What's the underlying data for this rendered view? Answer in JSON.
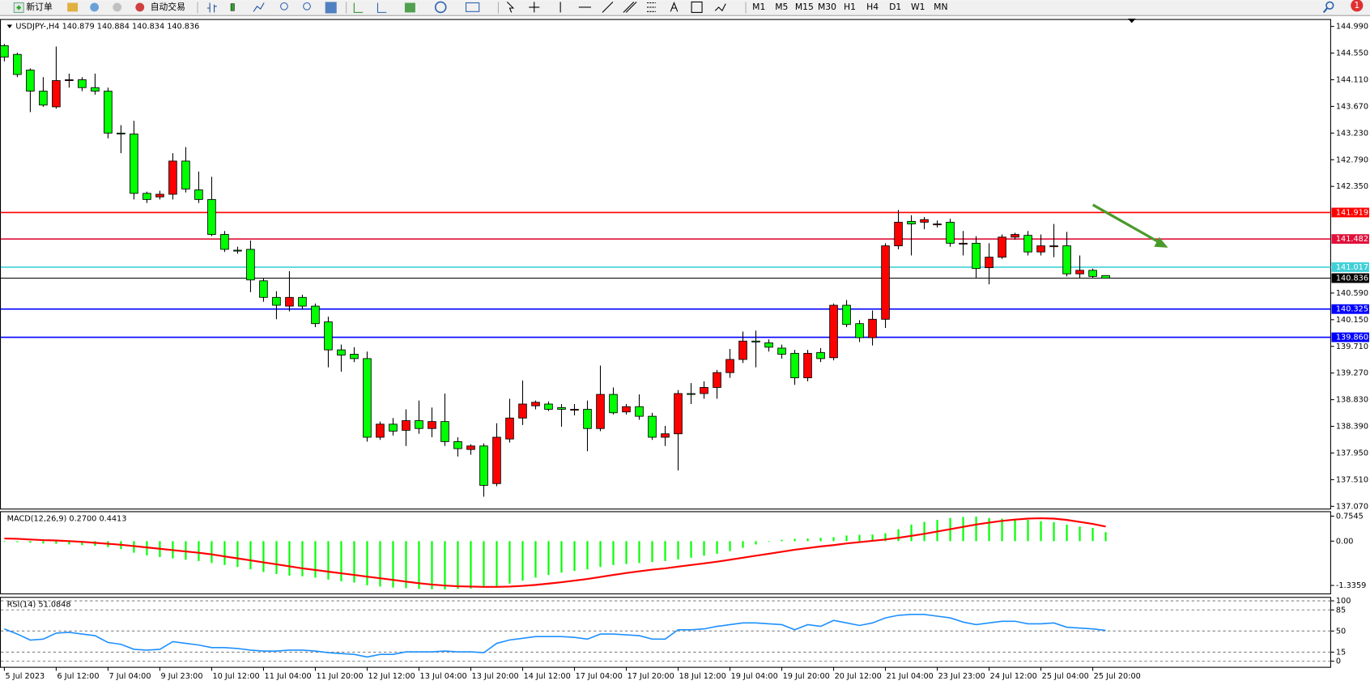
{
  "toolbar": {
    "new_order": "新订单",
    "auto_trading": "自动交易",
    "timeframes": [
      "M1",
      "M5",
      "M15",
      "M30",
      "H1",
      "H4",
      "D1",
      "W1",
      "MN"
    ],
    "notification": "1"
  },
  "chart_data": [
    {
      "type": "candlestick",
      "title": "USDJPY-,H4  140.879 140.884 140.834 140.836",
      "up_color": "#ff0000",
      "down_color": "#00ff00",
      "x": [
        "5 Jul 2023",
        null,
        null,
        null,
        "6 Jul 12:00",
        null,
        null,
        null,
        "7 Jul 04:00",
        null,
        null,
        null,
        "9 Jul 23:00",
        null,
        null,
        null,
        "10 Jul 12:00",
        null,
        null,
        null,
        "11 Jul 04:00",
        null,
        null,
        null,
        "11 Jul 20:00",
        null,
        null,
        null,
        "12 Jul 12:00",
        null,
        null,
        null,
        "13 Jul 04:00",
        null,
        null,
        null,
        "13 Jul 20:00",
        null,
        null,
        null,
        "14 Jul 12:00",
        null,
        null,
        null,
        "17 Jul 04:00",
        null,
        null,
        null,
        "17 Jul 20:00",
        null,
        null,
        null,
        "18 Jul 12:00",
        null,
        null,
        null,
        "19 Jul 04:00",
        null,
        null,
        null,
        "19 Jul 20:00",
        null,
        null,
        null,
        "20 Jul 12:00",
        null,
        null,
        null,
        "21 Jul 04:00",
        null,
        null,
        null,
        "23 Jul 23:00",
        null,
        null,
        null,
        "24 Jul 12:00",
        null,
        null,
        null,
        "25 Jul 04:00",
        null,
        null,
        null,
        "25 Jul 20:00",
        null
      ],
      "open": [
        144.673,
        144.528,
        144.269,
        143.922,
        143.663,
        144.096,
        144.11,
        143.98,
        143.922,
        143.23,
        143.215,
        142.235,
        142.177,
        142.22,
        142.768,
        142.292,
        142.134,
        141.557,
        141.297,
        141.311,
        140.792,
        140.518,
        140.374,
        140.518,
        140.374,
        140.114,
        139.652,
        139.58,
        139.508,
        138.21,
        138.426,
        138.325,
        138.484,
        138.354,
        138.469,
        138.138,
        138.008,
        138.066,
        137.445,
        138.181,
        138.527,
        138.729,
        138.758,
        138.7,
        138.671,
        138.671,
        138.354,
        138.917,
        138.628,
        138.715,
        138.556,
        138.21,
        138.267,
        138.931,
        138.931,
        139.032,
        139.277,
        139.494,
        139.797,
        139.768,
        139.681,
        139.595,
        139.191,
        139.609,
        139.523,
        140.388,
        140.085,
        139.854,
        140.157,
        141.369,
        141.773,
        141.759,
        141.73,
        141.759,
        141.412,
        141.412,
        141.008,
        141.182,
        141.513,
        141.542,
        141.268,
        141.369,
        141.369,
        140.907,
        140.965,
        140.879
      ],
      "high": [
        144.701,
        144.557,
        144.298,
        144.153,
        144.658,
        144.211,
        144.153,
        144.211,
        143.98,
        143.36,
        143.432,
        142.263,
        142.278,
        142.898,
        142.999,
        142.595,
        142.509,
        141.614,
        141.355,
        141.456,
        140.835,
        140.619,
        140.951,
        140.561,
        140.417,
        140.201,
        139.739,
        139.696,
        139.624,
        138.469,
        138.527,
        138.671,
        138.816,
        138.7,
        138.931,
        138.21,
        138.094,
        138.109,
        138.441,
        138.845,
        139.147,
        138.816,
        138.801,
        138.758,
        138.758,
        138.816,
        139.393,
        139.032,
        138.758,
        138.917,
        138.614,
        138.397,
        138.989,
        139.104,
        139.133,
        139.321,
        139.667,
        139.955,
        139.97,
        139.825,
        139.739,
        139.652,
        139.652,
        139.681,
        140.417,
        140.475,
        140.143,
        140.302,
        141.412,
        141.961,
        141.874,
        141.845,
        141.787,
        141.816,
        141.614,
        141.528,
        141.412,
        141.557,
        141.585,
        141.614,
        141.557,
        141.73,
        141.6,
        141.21,
        140.994,
        140.884
      ],
      "low": [
        144.413,
        144.153,
        143.576,
        143.663,
        143.634,
        143.98,
        143.922,
        143.865,
        143.143,
        142.898,
        142.134,
        142.076,
        142.134,
        142.134,
        142.249,
        142.076,
        141.528,
        141.268,
        141.239,
        140.604,
        140.446,
        140.157,
        140.287,
        140.316,
        140.027,
        139.364,
        139.292,
        139.45,
        138.138,
        138.167,
        138.239,
        138.066,
        138.267,
        138.21,
        138.066,
        137.892,
        137.921,
        137.229,
        137.402,
        138.123,
        138.412,
        138.671,
        138.643,
        138.383,
        138.57,
        137.979,
        138.311,
        138.585,
        138.585,
        138.498,
        138.167,
        138.066,
        137.662,
        138.758,
        138.845,
        138.845,
        139.191,
        139.436,
        139.364,
        139.624,
        139.508,
        139.075,
        139.133,
        139.45,
        139.479,
        140.027,
        139.782,
        139.725,
        140.013,
        141.311,
        141.21,
        141.643,
        141.672,
        141.355,
        141.21,
        140.835,
        140.734,
        141.153,
        141.47,
        141.21,
        141.21,
        141.182,
        140.864,
        140.835,
        140.835,
        140.834
      ],
      "close": [
        144.485,
        144.197,
        143.922,
        143.692,
        144.096,
        144.11,
        143.98,
        143.922,
        143.23,
        143.215,
        142.235,
        142.134,
        142.22,
        142.768,
        142.307,
        142.134,
        141.557,
        141.311,
        141.283,
        140.806,
        140.518,
        140.388,
        140.518,
        140.374,
        140.085,
        139.652,
        139.566,
        139.508,
        138.21,
        138.426,
        138.311,
        138.484,
        138.354,
        138.469,
        138.138,
        138.022,
        138.066,
        137.416,
        138.21,
        138.527,
        138.758,
        138.787,
        138.671,
        138.671,
        138.671,
        138.354,
        138.917,
        138.614,
        138.715,
        138.556,
        138.21,
        138.267,
        138.931,
        138.917,
        139.032,
        139.277,
        139.494,
        139.797,
        139.782,
        139.696,
        139.58,
        139.191,
        139.595,
        139.508,
        140.388,
        140.071,
        139.854,
        140.157,
        141.369,
        141.759,
        141.73,
        141.802,
        141.73,
        141.412,
        141.412,
        140.994,
        141.182,
        141.513,
        141.557,
        141.268,
        141.369,
        141.369,
        140.907,
        140.965,
        140.864,
        140.836
      ],
      "ylim": [
        137.025,
        145.105
      ],
      "yticks": [
        {
          "value": 144.99,
          "label": "144.990"
        },
        {
          "value": 144.55,
          "label": "144.550"
        },
        {
          "value": 144.11,
          "label": "144.110"
        },
        {
          "value": 143.67,
          "label": "143.670"
        },
        {
          "value": 143.23,
          "label": "143.230"
        },
        {
          "value": 142.79,
          "label": "142.790"
        },
        {
          "value": 142.35,
          "label": "142.350"
        },
        {
          "value": 140.59,
          "label": "140.590"
        },
        {
          "value": 140.15,
          "label": "140.150"
        },
        {
          "value": 139.71,
          "label": "139.710"
        },
        {
          "value": 139.27,
          "label": "139.270"
        },
        {
          "value": 138.83,
          "label": "138.830"
        },
        {
          "value": 138.39,
          "label": "138.390"
        },
        {
          "value": 137.95,
          "label": "137.950"
        },
        {
          "value": 137.51,
          "label": "137.510"
        },
        {
          "value": 137.07,
          "label": "137.070"
        }
      ],
      "levels": [
        {
          "price": 141.919,
          "color": "#ff0000"
        },
        {
          "price": 141.482,
          "color": "#e0103a"
        },
        {
          "price": 141.017,
          "color": "#40d0d8"
        },
        {
          "price": 140.836,
          "color": "#000000"
        },
        {
          "price": 140.325,
          "color": "#0000ff"
        },
        {
          "price": {
            "value": 139.86,
            "label": "139.860"
          },
          "color": "#0000ff"
        }
      ]
    },
    {
      "type": "macd",
      "title": "MACD(12,26,9) 0.2700 0.4413",
      "series": [
        {
          "type": "bar",
          "color": "#00ff00",
          "values": [
            -0.02,
            -0.03,
            -0.05,
            -0.07,
            -0.08,
            -0.1,
            -0.12,
            -0.14,
            -0.18,
            -0.24,
            -0.35,
            -0.43,
            -0.48,
            -0.52,
            -0.56,
            -0.6,
            -0.66,
            -0.72,
            -0.78,
            -0.85,
            -0.93,
            -0.99,
            -1.04,
            -1.06,
            -1.1,
            -1.16,
            -1.21,
            -1.25,
            -1.33,
            -1.37,
            -1.4,
            -1.42,
            -1.44,
            -1.45,
            -1.46,
            -1.44,
            -1.43,
            -1.4,
            -1.36,
            -1.28,
            -1.19,
            -1.1,
            -1.02,
            -0.95,
            -0.9,
            -0.85,
            -0.78,
            -0.72,
            -0.69,
            -0.66,
            -0.63,
            -0.6,
            -0.55,
            -0.5,
            -0.44,
            -0.38,
            -0.3,
            -0.2,
            -0.1,
            -0.02,
            0.04,
            0.07,
            0.08,
            0.1,
            0.12,
            0.17,
            0.19,
            0.2,
            0.24,
            0.36,
            0.5,
            0.58,
            0.64,
            0.7,
            0.73,
            0.74,
            0.7,
            0.68,
            0.67,
            0.64,
            0.6,
            0.57,
            0.5,
            0.44,
            0.4,
            0.27
          ]
        },
        {
          "type": "line",
          "color": "#ff0000",
          "values": [
            0.08,
            0.07,
            0.05,
            0.03,
            0.02,
            0.0,
            -0.02,
            -0.05,
            -0.08,
            -0.11,
            -0.15,
            -0.19,
            -0.23,
            -0.27,
            -0.31,
            -0.35,
            -0.4,
            -0.46,
            -0.52,
            -0.58,
            -0.64,
            -0.7,
            -0.76,
            -0.82,
            -0.87,
            -0.92,
            -0.97,
            -1.02,
            -1.07,
            -1.12,
            -1.17,
            -1.22,
            -1.27,
            -1.31,
            -1.34,
            -1.36,
            -1.37,
            -1.38,
            -1.38,
            -1.37,
            -1.35,
            -1.32,
            -1.28,
            -1.24,
            -1.19,
            -1.14,
            -1.08,
            -1.02,
            -0.96,
            -0.91,
            -0.86,
            -0.82,
            -0.77,
            -0.72,
            -0.67,
            -0.62,
            -0.56,
            -0.5,
            -0.44,
            -0.38,
            -0.32,
            -0.26,
            -0.21,
            -0.16,
            -0.12,
            -0.07,
            -0.03,
            0.01,
            0.05,
            0.1,
            0.16,
            0.22,
            0.29,
            0.36,
            0.43,
            0.5,
            0.56,
            0.61,
            0.65,
            0.68,
            0.69,
            0.68,
            0.64,
            0.58,
            0.52,
            0.4413
          ]
        }
      ],
      "ylim": [
        -1.59,
        0.889
      ],
      "yticks": [
        0.7545,
        {
          "value": 0,
          "label": "0.00"
        },
        -1.3359
      ]
    },
    {
      "type": "line",
      "title": "RSI(14) 51.0848",
      "color": "#1e90ff",
      "values": [
        53.5,
        45,
        35,
        36.6,
        46.5,
        47.9,
        45,
        42.3,
        31,
        28,
        19.7,
        18.3,
        19.7,
        32.4,
        29.6,
        26.8,
        22.5,
        22.5,
        21.1,
        18.3,
        16.9,
        16.9,
        18.3,
        18.3,
        16.9,
        14.1,
        12.7,
        11.3,
        7,
        11.3,
        11.3,
        15.5,
        15.5,
        15.5,
        16.9,
        15.5,
        15.5,
        14.1,
        29.6,
        35.2,
        38,
        40.8,
        40.8,
        40.8,
        39.4,
        36.6,
        45,
        45,
        43.7,
        42.3,
        36.6,
        36.6,
        52.1,
        52.1,
        53.5,
        57.7,
        60.6,
        63.4,
        63.4,
        62,
        60.6,
        52.1,
        60.6,
        57.7,
        67.6,
        63.4,
        59.2,
        63.4,
        71.8,
        76.1,
        77.5,
        77.5,
        74.6,
        71.8,
        64.8,
        60.6,
        63.4,
        66.2,
        66.2,
        62,
        62,
        63.4,
        56.3,
        54.9,
        53.5,
        51.0848
      ],
      "ylim": [
        -10.1,
        105.8
      ],
      "yticks": [
        100,
        85,
        50,
        15,
        0
      ],
      "grid": "dashed"
    }
  ]
}
